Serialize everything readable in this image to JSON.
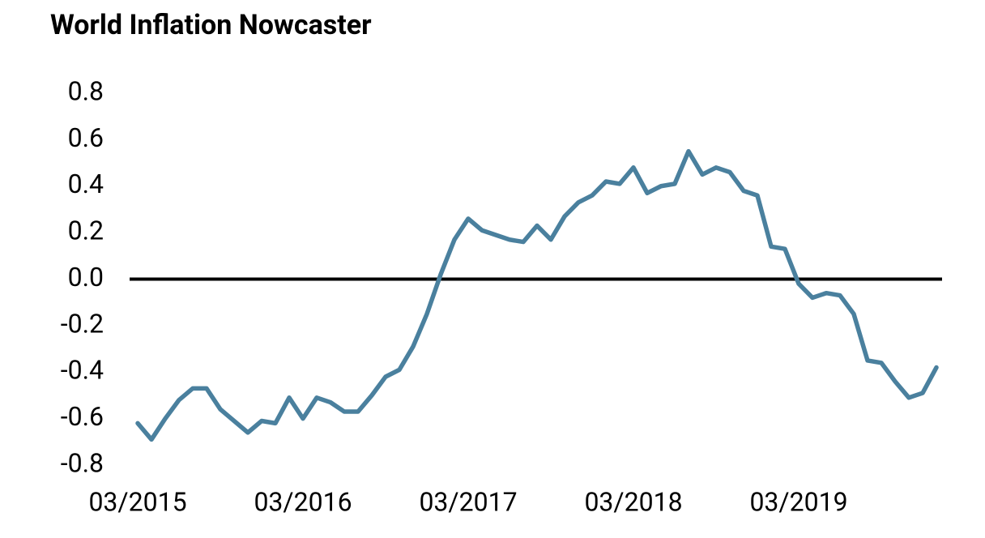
{
  "chart_data": {
    "type": "line",
    "title": "World Inflation Nowcaster",
    "categories": [
      "03/2015",
      null,
      null,
      null,
      null,
      null,
      null,
      null,
      null,
      null,
      null,
      null,
      "03/2016",
      null,
      null,
      null,
      null,
      null,
      null,
      null,
      null,
      null,
      null,
      null,
      "03/2017",
      null,
      null,
      null,
      null,
      null,
      null,
      null,
      null,
      null,
      null,
      null,
      "03/2018",
      null,
      null,
      null,
      null,
      null,
      null,
      null,
      null,
      null,
      null,
      null,
      "03/2019",
      null,
      null,
      null,
      null,
      null,
      null,
      null,
      null,
      null,
      null
    ],
    "series": [
      {
        "color": "#4a809e",
        "values": [
          -0.62,
          -0.69,
          -0.6,
          -0.52,
          -0.47,
          -0.47,
          -0.56,
          -0.61,
          -0.66,
          -0.61,
          -0.62,
          -0.51,
          -0.6,
          -0.51,
          -0.53,
          -0.57,
          -0.57,
          -0.5,
          -0.42,
          -0.39,
          -0.29,
          -0.15,
          0.02,
          0.17,
          0.26,
          0.21,
          0.19,
          0.17,
          0.16,
          0.23,
          0.17,
          0.27,
          0.33,
          0.36,
          0.42,
          0.41,
          0.48,
          0.37,
          0.4,
          0.41,
          0.55,
          0.45,
          0.48,
          0.46,
          0.38,
          0.36,
          0.14,
          0.13,
          -0.02,
          -0.08,
          -0.06,
          -0.07,
          -0.15,
          -0.35,
          -0.36,
          -0.44,
          -0.51,
          -0.49,
          -0.38
        ]
      }
    ],
    "ylim": [
      -0.8,
      0.8
    ],
    "yticks": [
      -0.8,
      -0.6,
      -0.4,
      -0.2,
      {
        "value": 0,
        "label": "0.0"
      },
      0.2,
      0.4,
      0.6,
      0.8
    ],
    "zero_line": true
  }
}
